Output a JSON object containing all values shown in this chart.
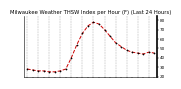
{
  "title": "Milwaukee Weather THSW Index per Hour (F) (Last 24 Hours)",
  "x_values": [
    0,
    1,
    2,
    3,
    4,
    5,
    6,
    7,
    8,
    9,
    10,
    11,
    12,
    13,
    14,
    15,
    16,
    17,
    18,
    19,
    20,
    21,
    22,
    23
  ],
  "y_values": [
    28,
    27,
    26,
    26,
    25,
    25,
    26,
    28,
    40,
    54,
    66,
    74,
    78,
    76,
    70,
    63,
    56,
    52,
    48,
    46,
    45,
    44,
    46,
    45
  ],
  "line_color": "#cc0000",
  "marker_color": "#000000",
  "bg_color": "#ffffff",
  "grid_color": "#888888",
  "ylim": [
    20,
    85
  ],
  "yticks": [
    20,
    30,
    40,
    50,
    60,
    70,
    80
  ],
  "ytick_labels": [
    "20",
    "30",
    "40",
    "50",
    "60",
    "70",
    "80"
  ],
  "title_color": "#000000",
  "title_fontsize": 3.8,
  "tick_fontsize": 3.0,
  "vgrid_positions": [
    0,
    2,
    4,
    6,
    8,
    10,
    12,
    14,
    16,
    18,
    20,
    22
  ]
}
